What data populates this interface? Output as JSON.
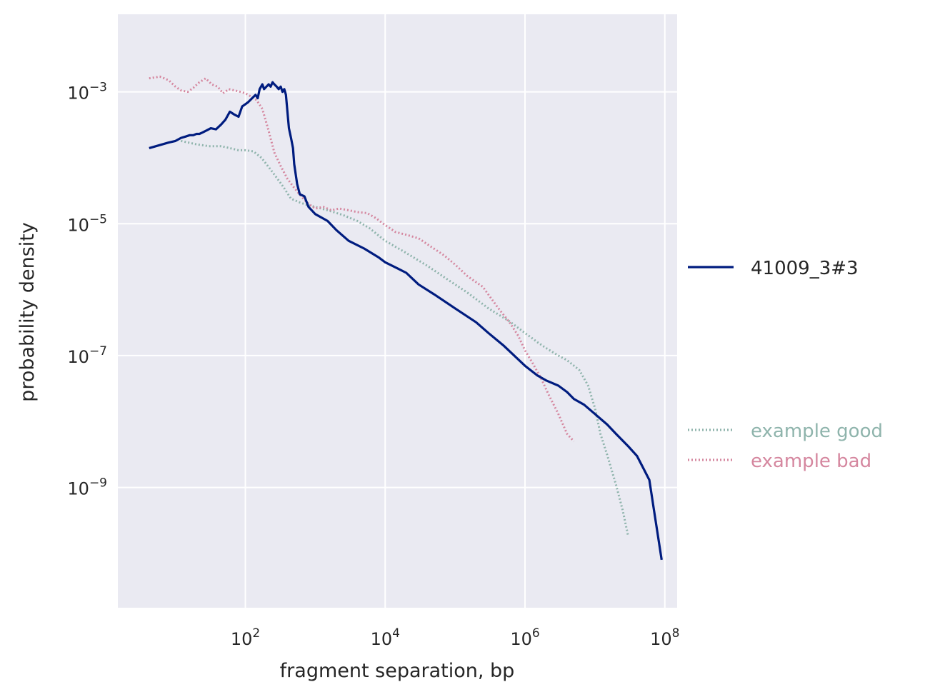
{
  "chart_data": {
    "type": "line",
    "xlabel": "fragment separation, bp",
    "ylabel": "probability density",
    "xscale": "log",
    "yscale": "log",
    "xlim": [
      1.5,
      150000000.0
    ],
    "ylim": [
      1.5e-11,
      0.015
    ],
    "grid": true,
    "legend_placement": "right, outside plot",
    "x_ticks": [
      {
        "value": 100,
        "base": "10",
        "exp": "2"
      },
      {
        "value": 10000,
        "base": "10",
        "exp": "4"
      },
      {
        "value": 1000000,
        "base": "10",
        "exp": "6"
      },
      {
        "value": 100000000,
        "base": "10",
        "exp": "8"
      }
    ],
    "y_ticks": [
      {
        "value": 0.001,
        "base": "10",
        "exp": "−3"
      },
      {
        "value": 1e-05,
        "base": "10",
        "exp": "−5"
      },
      {
        "value": 1e-07,
        "base": "10",
        "exp": "−7"
      },
      {
        "value": 1e-09,
        "base": "10",
        "exp": "−9"
      }
    ],
    "series": [
      {
        "name": "41009_3#3",
        "color": "#001c7f",
        "style": "solid",
        "x": [
          4.2,
          8,
          10,
          12,
          14,
          16,
          18,
          20,
          22,
          24,
          28,
          32,
          38,
          45,
          52,
          60,
          70,
          80,
          90,
          100,
          110,
          125,
          140,
          150,
          160,
          175,
          185,
          200,
          215,
          230,
          245,
          260,
          280,
          300,
          320,
          340,
          360,
          380,
          400,
          420,
          450,
          480,
          500,
          550,
          600,
          700,
          800,
          1000,
          1500,
          2000,
          3000,
          5000,
          8000,
          10000,
          15000,
          20000,
          30000,
          50000,
          100000,
          200000,
          300000,
          500000,
          1000000,
          1500000,
          2000000,
          3000000,
          4000000,
          5000000,
          7000000,
          10000000,
          15000000,
          20000000,
          30000000,
          40000000,
          50000000,
          60000000,
          70000000,
          80000000,
          90000000
        ],
        "y": [
          0.00014,
          0.00017,
          0.00018,
          0.0002,
          0.00021,
          0.00022,
          0.00022,
          0.00023,
          0.00023,
          0.00024,
          0.00026,
          0.00028,
          0.00027,
          0.00032,
          0.00038,
          0.0005,
          0.00045,
          0.00042,
          0.0006,
          0.00065,
          0.0007,
          0.0008,
          0.0009,
          0.0008,
          0.0011,
          0.0013,
          0.0011,
          0.0012,
          0.0013,
          0.0012,
          0.0014,
          0.0013,
          0.0012,
          0.0011,
          0.0012,
          0.001,
          0.0011,
          0.0009,
          0.0005,
          0.00028,
          0.0002,
          0.00014,
          8e-05,
          4e-05,
          2.8e-05,
          2.6e-05,
          1.8e-05,
          1.4e-05,
          1.1e-05,
          8e-06,
          5.5e-06,
          4.2e-06,
          3.1e-06,
          2.6e-06,
          2.1e-06,
          1.8e-06,
          1.2e-06,
          8.5e-07,
          5.2e-07,
          3.2e-07,
          2.2e-07,
          1.4e-07,
          7e-08,
          5e-08,
          4.2e-08,
          3.5e-08,
          2.8e-08,
          2.2e-08,
          1.8e-08,
          1.3e-08,
          9e-09,
          6.5e-09,
          4.2e-09,
          3e-09,
          1.9e-09,
          1.3e-09,
          4.5e-10,
          1.8e-10,
          8e-11
        ]
      },
      {
        "name": "example good",
        "color": "#8fb4ac",
        "style": "dotted",
        "x": [
          12,
          20,
          30,
          45,
          60,
          80,
          100,
          130,
          170,
          220,
          280,
          350,
          450,
          600,
          800,
          1000,
          1500,
          2500,
          4000,
          6000,
          10000,
          20000,
          40000,
          80000,
          150000,
          300000,
          600000,
          1000000,
          1500000,
          2000000,
          3000000,
          4000000,
          6000000,
          8000000,
          10000000,
          12000000,
          15000000,
          20000000,
          25000000,
          30000000
        ],
        "y": [
          0.00018,
          0.00016,
          0.00015,
          0.00015,
          0.00014,
          0.00013,
          0.00013,
          0.000125,
          0.0001,
          7e-05,
          5e-05,
          3.6e-05,
          2.4e-05,
          2.1e-05,
          1.9e-05,
          1.8e-05,
          1.6e-05,
          1.35e-05,
          1.1e-05,
          8.5e-06,
          5.5e-06,
          3.6e-06,
          2.3e-06,
          1.4e-06,
          9e-07,
          5.2e-07,
          3.3e-07,
          2.2e-07,
          1.6e-07,
          1.3e-07,
          1e-07,
          8.5e-08,
          6e-08,
          3.5e-08,
          1.6e-08,
          6.5e-09,
          3.1e-09,
          1.1e-09,
          4.5e-10,
          1.8e-10
        ]
      },
      {
        "name": "example bad",
        "color": "#d5879f",
        "style": "dotted",
        "x": [
          4.2,
          6,
          8,
          10,
          12,
          15,
          18,
          22,
          27,
          33,
          40,
          48,
          58,
          70,
          85,
          100,
          120,
          145,
          175,
          210,
          260,
          320,
          400,
          500,
          650,
          800,
          1000,
          1300,
          1700,
          2200,
          3000,
          4000,
          5500,
          7500,
          10000,
          14000,
          20000,
          30000,
          45000,
          70000,
          100000,
          150000,
          250000,
          400000,
          600000,
          800000,
          1000000,
          1300000,
          1700000,
          2200000,
          3000000,
          4000000,
          5000000
        ],
        "y": [
          0.0016,
          0.0017,
          0.0015,
          0.0012,
          0.00105,
          0.001,
          0.00115,
          0.0014,
          0.0016,
          0.0013,
          0.0012,
          0.00095,
          0.0011,
          0.00105,
          0.001,
          0.00095,
          0.00085,
          0.00075,
          0.00055,
          0.00028,
          0.00012,
          7.5e-05,
          4.8e-05,
          3.5e-05,
          2.5e-05,
          2e-05,
          1.7e-05,
          1.8e-05,
          1.6e-05,
          1.7e-05,
          1.6e-05,
          1.5e-05,
          1.45e-05,
          1.2e-05,
          9.5e-06,
          7.5e-06,
          6.8e-06,
          6e-06,
          4.5e-06,
          3.3e-06,
          2.4e-06,
          1.6e-06,
          1.1e-06,
          5.5e-07,
          3.2e-07,
          2e-07,
          1.2e-07,
          7.5e-08,
          4.5e-08,
          2.5e-08,
          1.3e-08,
          6.5e-09,
          5e-09
        ]
      }
    ]
  }
}
